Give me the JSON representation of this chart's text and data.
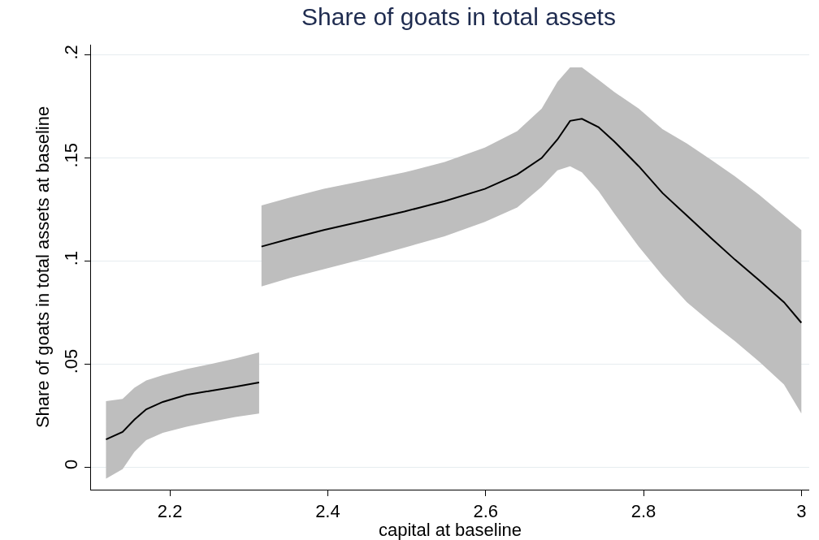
{
  "chart_data": {
    "type": "line",
    "title": "Share of goats in total assets",
    "xlabel": "capital at baseline",
    "ylabel": "Share of goats in total assets at baseline",
    "xlim": [
      2.1,
      3.01
    ],
    "xticks": [
      2.2,
      2.4,
      2.6,
      2.8,
      3
    ],
    "ylim": [
      -0.011,
      0.205
    ],
    "yticks": [
      {
        "value": 0,
        "label": "0"
      },
      {
        "value": 0.05,
        "label": ".05"
      },
      {
        "value": 0.1,
        "label": ".1"
      },
      {
        "value": 0.15,
        "label": ".15"
      },
      {
        "value": 0.2,
        "label": ".2"
      }
    ],
    "grid": "y",
    "line_style": "solid",
    "marker": "none",
    "series": [
      {
        "color": "#000000",
        "x": [
          2.119,
          2.14,
          2.155,
          2.17,
          2.191,
          2.221,
          2.252,
          2.283,
          2.313
        ],
        "values": [
          0.0134,
          0.017,
          0.023,
          0.028,
          0.0316,
          0.035,
          0.037,
          0.039,
          0.041
        ],
        "lower": [
          -0.0057,
          -0.001,
          0.0073,
          0.013,
          0.0166,
          0.0195,
          0.022,
          0.0243,
          0.026
        ],
        "upper": [
          0.032,
          0.033,
          0.0385,
          0.042,
          0.0446,
          0.0475,
          0.05,
          0.0527,
          0.0556
        ]
      },
      {
        "color": "#000000",
        "x": [
          2.316,
          2.354,
          2.395,
          2.446,
          2.497,
          2.548,
          2.599,
          2.64,
          2.671,
          2.691,
          2.707,
          2.722,
          2.743,
          2.763,
          2.794,
          2.824,
          2.855,
          2.886,
          2.916,
          2.947,
          2.978,
          3.0
        ],
        "values": [
          0.107,
          0.111,
          0.115,
          0.1195,
          0.124,
          0.129,
          0.135,
          0.142,
          0.15,
          0.159,
          0.168,
          0.169,
          0.165,
          0.158,
          0.146,
          0.133,
          0.122,
          0.111,
          0.1006,
          0.0905,
          0.08,
          0.07
        ],
        "lower": [
          0.0876,
          0.092,
          0.096,
          0.101,
          0.1065,
          0.112,
          0.119,
          0.126,
          0.136,
          0.144,
          0.146,
          0.143,
          0.134,
          0.123,
          0.107,
          0.093,
          0.08,
          0.07,
          0.061,
          0.051,
          0.04,
          0.026
        ],
        "upper": [
          0.127,
          0.131,
          0.135,
          0.139,
          0.143,
          0.148,
          0.155,
          0.163,
          0.174,
          0.187,
          0.194,
          0.194,
          0.188,
          0.182,
          0.174,
          0.164,
          0.157,
          0.149,
          0.141,
          0.132,
          0.122,
          0.115
        ]
      }
    ]
  }
}
